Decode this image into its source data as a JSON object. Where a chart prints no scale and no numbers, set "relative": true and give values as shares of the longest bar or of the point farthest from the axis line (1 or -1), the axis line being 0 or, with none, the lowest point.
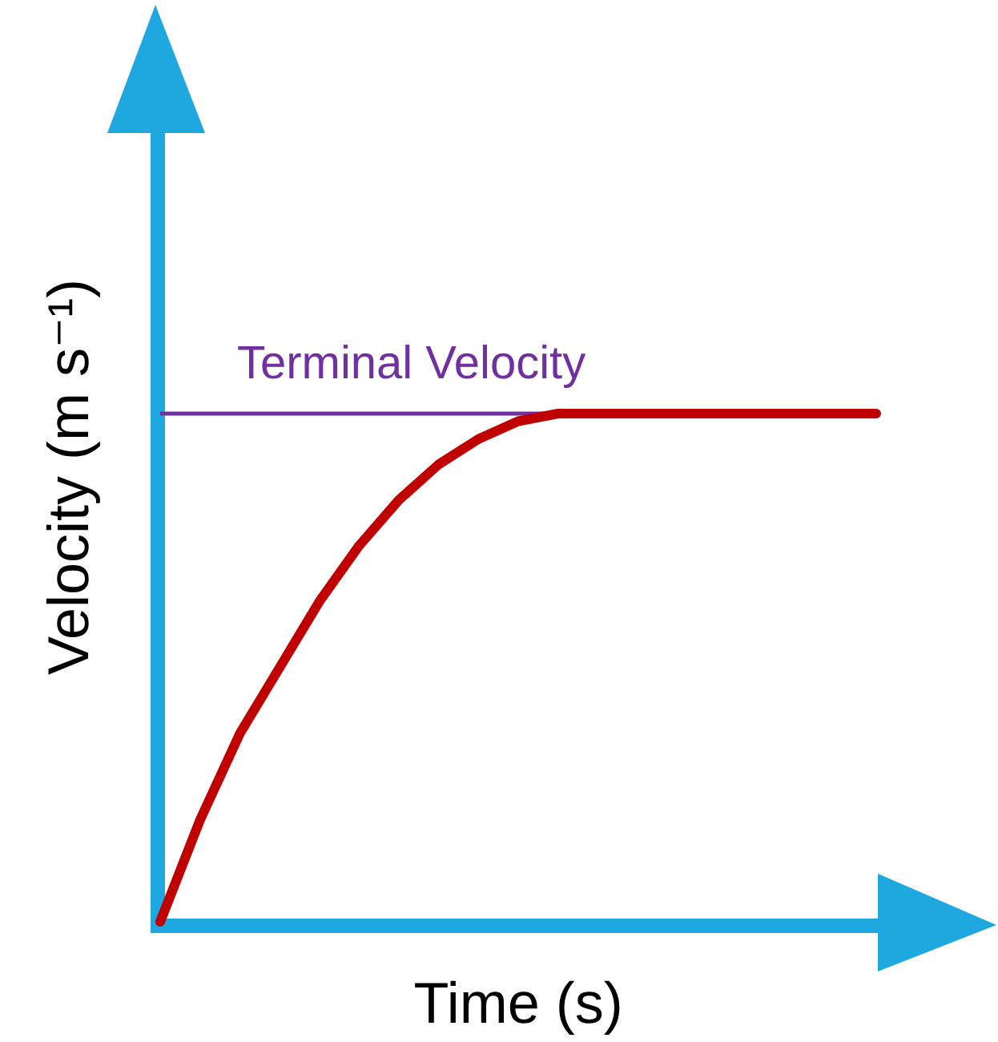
{
  "chart_data": {
    "type": "line",
    "relative": true,
    "xlabel": "Time (s)",
    "ylabel": "Velocity (m s⁻¹)",
    "tick_labels": false,
    "categories": [
      null,
      null,
      null,
      null,
      null,
      null,
      null,
      null,
      null,
      null,
      null,
      null,
      null,
      null,
      null,
      null,
      null,
      null,
      null
    ],
    "series": [
      {
        "color": "#c00000",
        "values": [
          0,
          0.2,
          0.37,
          0.5,
          0.63,
          0.74,
          0.83,
          0.9,
          0.95,
          0.985,
          1,
          1,
          1,
          1,
          1,
          1,
          1,
          1,
          1
        ]
      }
    ],
    "ref_lines": [
      {
        "axis": "y",
        "value": 1,
        "label": "Terminal Velocity",
        "color": "#7030a0"
      }
    ]
  }
}
